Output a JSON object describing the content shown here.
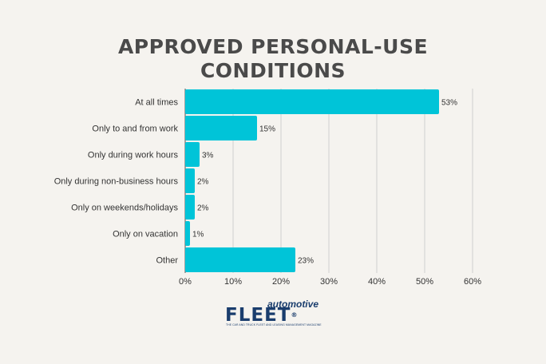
{
  "chart_data": {
    "type": "bar",
    "orientation": "horizontal",
    "title": [
      "APPROVED PERSONAL-USE",
      "CONDITIONS"
    ],
    "categories": [
      "At all times",
      "Only to and from work",
      "Only during work hours",
      "Only during non-business hours",
      "Only on weekends/holidays",
      "Only on vacation",
      "Other"
    ],
    "values": [
      53,
      15,
      3,
      2,
      2,
      1,
      23
    ],
    "value_labels": [
      "53%",
      "15%",
      "3%",
      "2%",
      "2%",
      "1%",
      "23%"
    ],
    "xlim": [
      0,
      60
    ],
    "xticks": [
      0,
      10,
      20,
      30,
      40,
      50,
      60
    ],
    "xtick_labels": [
      "0%",
      "10%",
      "20%",
      "30%",
      "40%",
      "50%",
      "60%"
    ],
    "grid": "vertical",
    "legend": "none",
    "bar_color": "#00c4d8"
  },
  "logo": {
    "top": "automotive",
    "main": "FLEET",
    "mark": "®",
    "tag": "THE CAR AND TRUCK FLEET AND LEASING MANAGEMENT MAGAZINE"
  }
}
